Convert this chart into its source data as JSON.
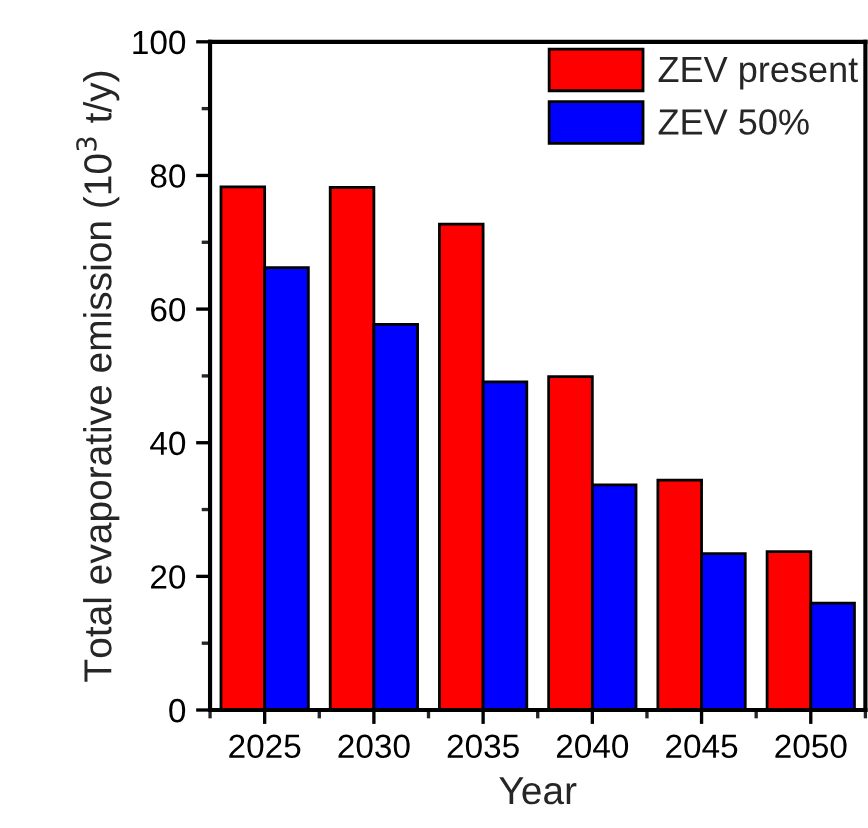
{
  "chart_data": {
    "type": "bar",
    "xlabel": "Year",
    "ylabel": "Total evaporative emission (10$^{3}$ t/y)",
    "categories": [
      "2025",
      "2030",
      "2035",
      "2040",
      "2045",
      "2050"
    ],
    "series": [
      {
        "name": "ZEV present",
        "color": "#ff0000",
        "values": [
          78.3,
          78.2,
          72.7,
          49.9,
          34.4,
          23.7
        ]
      },
      {
        "name": "ZEV 50%",
        "color": "#0000ff",
        "values": [
          66.2,
          57.7,
          49.1,
          33.7,
          23.4,
          16.0
        ]
      }
    ],
    "ylim": [
      0,
      100
    ],
    "yticks": [
      0,
      20,
      40,
      60,
      80,
      100
    ],
    "grid": false,
    "legend": "top right"
  }
}
